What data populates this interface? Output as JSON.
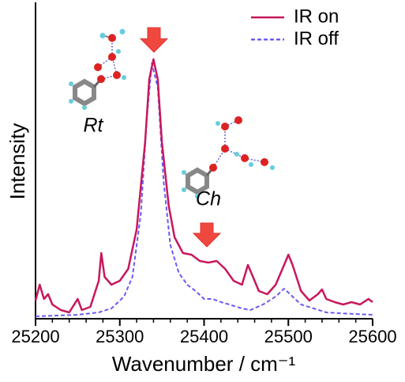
{
  "chart_data": {
    "type": "line",
    "xlabel": "Wavenumber / cm⁻¹",
    "ylabel": "Intensity",
    "annotations": [
      "Rt",
      "Ch"
    ],
    "xlim": [
      25200,
      25600
    ],
    "xticks": [
      25200,
      25300,
      25400,
      25500,
      25600
    ],
    "xminorticks": [
      25220,
      25240,
      25260,
      25280,
      25320,
      25340,
      25360,
      25380,
      25420,
      25440,
      25460,
      25480,
      25520,
      25540,
      25560,
      25580
    ],
    "ylim": [
      0,
      400
    ],
    "legend": "upper right",
    "series": [
      {
        "name": "IR on",
        "color": "#c8175d",
        "dash": false,
        "x": [
          25200,
          25205,
          25210,
          25215,
          25220,
          25230,
          25240,
          25250,
          25255,
          25265,
          25275,
          25278,
          25282,
          25290,
          25300,
          25310,
          25320,
          25330,
          25335,
          25340,
          25345,
          25350,
          25358,
          25365,
          25375,
          25385,
          25395,
          25405,
          25415,
          25425,
          25435,
          25445,
          25452,
          25458,
          25465,
          25475,
          25485,
          25495,
          25500,
          25505,
          25515,
          25525,
          25535,
          25540,
          25545,
          25555,
          25565,
          25575,
          25585,
          25595,
          25600
        ],
        "values": [
          23,
          43,
          25,
          31,
          18,
          11,
          8,
          25,
          11,
          15,
          48,
          83,
          53,
          43,
          48,
          63,
          113,
          223,
          303,
          328,
          303,
          223,
          143,
          103,
          83,
          81,
          73,
          71,
          73,
          63,
          48,
          43,
          68,
          53,
          35,
          31,
          43,
          68,
          81,
          68,
          35,
          23,
          31,
          37,
          25,
          21,
          18,
          21,
          18,
          25,
          21
        ]
      },
      {
        "name": "IR off",
        "color": "#6a5cf0",
        "dash": true,
        "x": [
          25200,
          25250,
          25275,
          25290,
          25305,
          25315,
          25325,
          25332,
          25338,
          25345,
          25352,
          25360,
          25370,
          25380,
          25390,
          25400,
          25410,
          25420,
          25430,
          25445,
          25455,
          25470,
          25485,
          25495,
          25505,
          25515,
          25530,
          25545,
          25560,
          25580,
          25600
        ],
        "values": [
          3,
          5,
          8,
          13,
          28,
          53,
          133,
          253,
          323,
          293,
          173,
          93,
          58,
          43,
          35,
          25,
          25,
          21,
          18,
          13,
          11,
          18,
          28,
          38,
          28,
          18,
          13,
          8,
          7,
          6,
          5
        ]
      }
    ]
  }
}
